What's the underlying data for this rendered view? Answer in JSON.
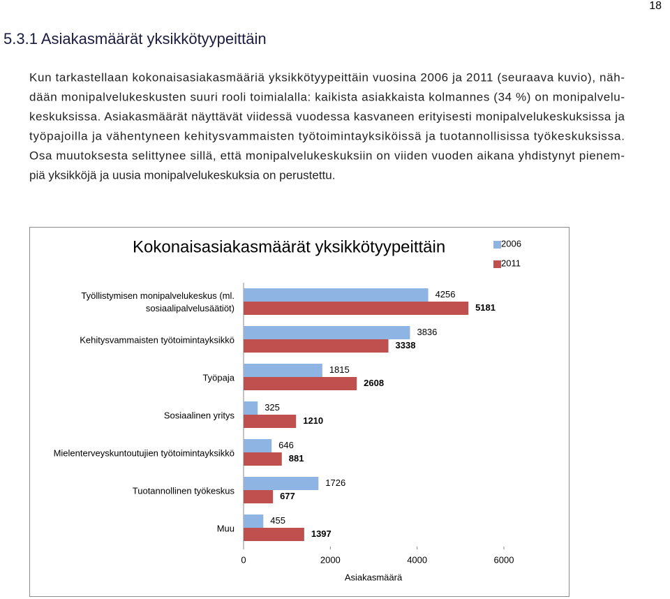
{
  "page_number": "18",
  "heading": "5.3.1 Asiakasmäärät yksikkötyypeittäin",
  "paragraph_lines": [
    "Kun tarkastellaan kokonaisasiakasmääriä yksikkötyypeittäin vuosina 2006 ja 2011 (seuraava kuvio), näh-",
    "dään monipalvelukeskusten suuri rooli toimialalla: kaikista asiakkaista kolmannes (34 %) on monipalvelu-",
    "keskuksissa. Asiakasmäärät näyttävät viidessä vuodessa kasvaneen erityisesti monipalvelukeskuksissa ja",
    "työpajoilla ja vähentyneen kehitysvammaisten työtoimintayksiköissä ja tuotannollisissa työkeskuksissa.",
    "Osa muutoksesta selittynee sillä, että monipalvelukeskuksiin on viiden vuoden aikana yhdistynyt pienem-",
    "piä yksikköjä ja uusia monipalvelukeskuksia on perustettu."
  ],
  "chart_data": {
    "type": "bar",
    "orientation": "horizontal",
    "title": "Kokonaisasiakasmäärät yksikkötyypeittäin",
    "categories": [
      "Työllistymisen monipalvelukeskus (ml.\nsosiaalipalvelusäätiöt)",
      "Kehitysvammaisten  työtoimintayksikkö",
      "Työpaja",
      "Sosiaalinen yritys",
      "Mielenterveyskuntoutujien työtoimintayksikkö",
      "Tuotannollinen työkeskus",
      "Muu"
    ],
    "series": [
      {
        "name": "2006",
        "color": "#8eb4e3",
        "values": [
          4256,
          3836,
          1815,
          325,
          646,
          1726,
          455
        ]
      },
      {
        "name": "2011",
        "color": "#c0504d",
        "values": [
          5181,
          3338,
          2608,
          1210,
          881,
          677,
          1397
        ]
      }
    ],
    "xlim": [
      0,
      6000
    ],
    "xticks": [
      0,
      2000,
      4000,
      6000
    ],
    "x_label": "Asiakasmäärä",
    "legend": "right"
  }
}
